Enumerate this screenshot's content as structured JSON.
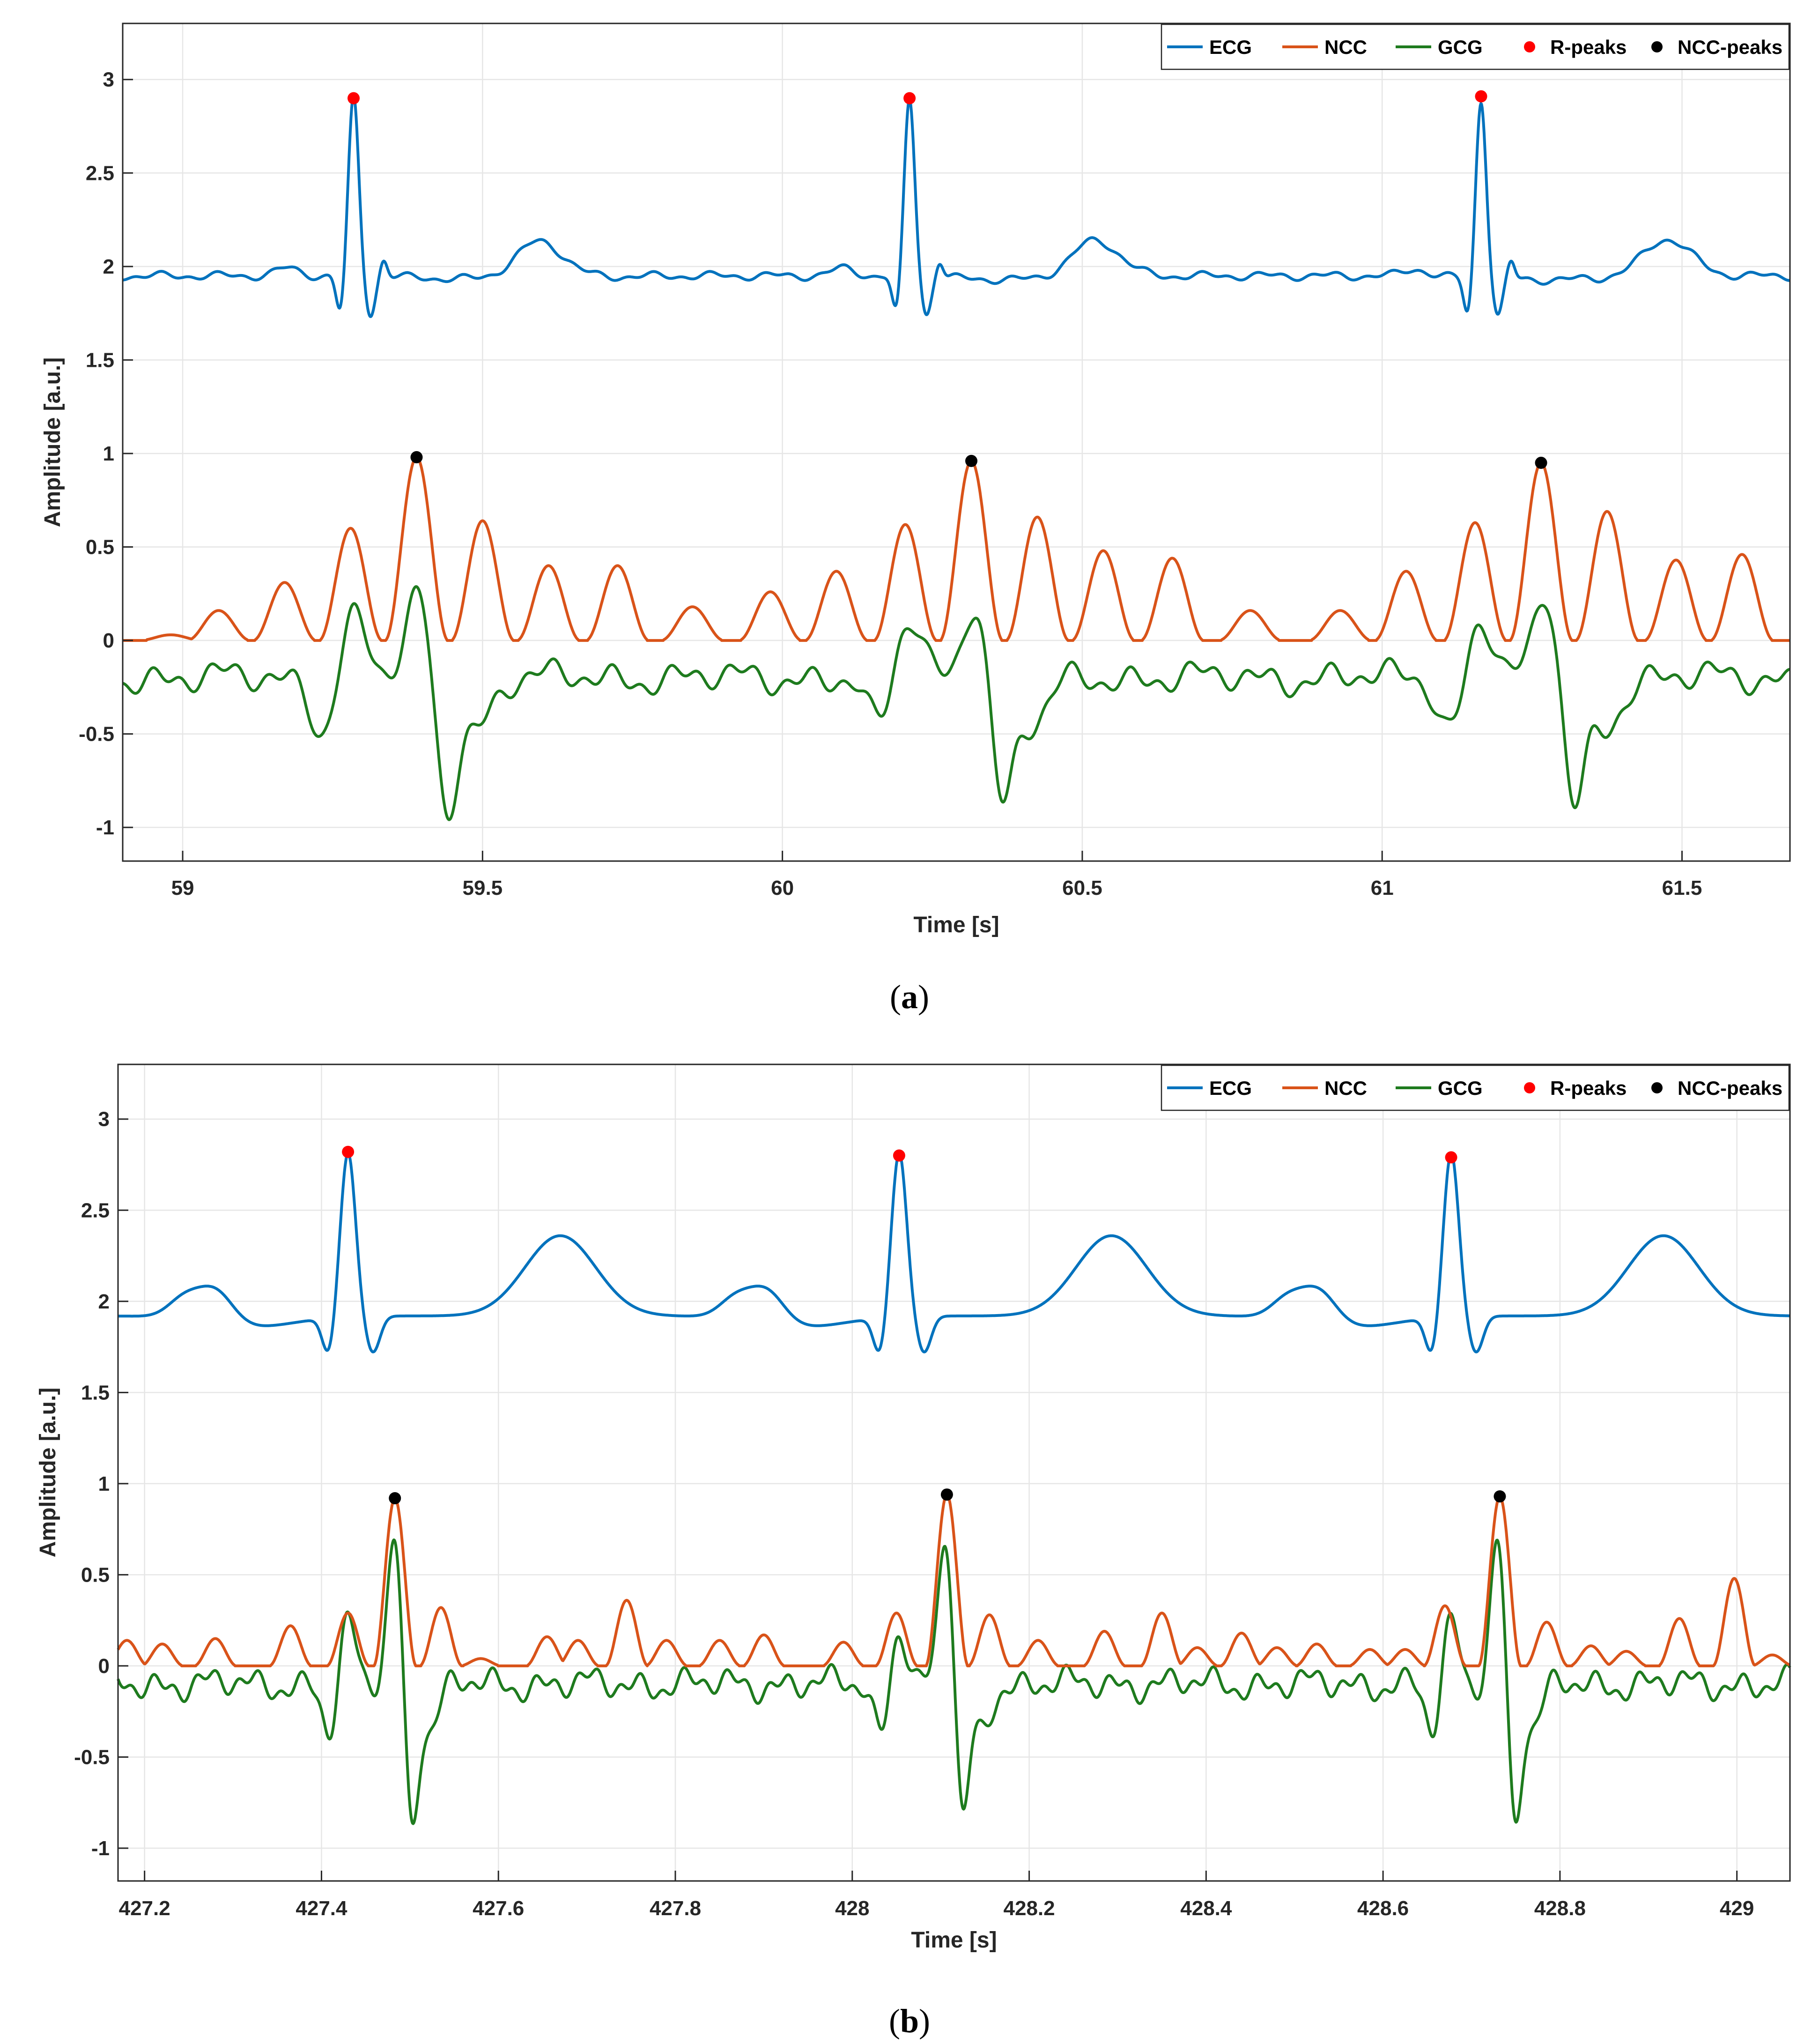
{
  "figure": {
    "captions": [
      {
        "open": "(",
        "letter": "a",
        "close": ")"
      },
      {
        "open": "(",
        "letter": "b",
        "close": ")"
      }
    ]
  },
  "chart_data": [
    {
      "type": "line",
      "panel": "a",
      "title": "",
      "xlabel": "Time [s]",
      "ylabel": "Amplitude [a.u.]",
      "xlim": [
        58.9,
        61.68
      ],
      "ylim": [
        -1.18,
        3.3
      ],
      "xticks": [
        59,
        59.5,
        60,
        60.5,
        61,
        61.5
      ],
      "xticklabels": [
        "59",
        "59.5",
        "60",
        "60.5",
        "61",
        "61.5"
      ],
      "yticks": [
        -1,
        -0.5,
        0,
        0.5,
        1,
        1.5,
        2,
        2.5,
        3
      ],
      "yticklabels": [
        "-1",
        "-0.5",
        "0",
        "0.5",
        "1",
        "1.5",
        "2",
        "2.5",
        "3"
      ],
      "grid": true,
      "legend_position": "top-right",
      "legend": [
        "ECG",
        "NCC",
        "GCG",
        "R-peaks",
        "NCC-peaks"
      ],
      "colors": {
        "ECG": "#0072BD",
        "NCC": "#D95319",
        "GCG": "#1E7B1E",
        "R-peaks": "#FF0000",
        "NCC-peaks": "#000000"
      },
      "beats": [
        59.285,
        60.212,
        61.165
      ],
      "ecg": {
        "baseline": 1.95,
        "r_amplitude": 2.9,
        "p": [
          -0.11,
          0.04
        ],
        "t": [
          0.31,
          0.2
        ],
        "noise": 0.025
      },
      "r_peaks": [
        {
          "x": 59.285,
          "y": 2.9
        },
        {
          "x": 60.212,
          "y": 2.9
        },
        {
          "x": 61.165,
          "y": 2.91
        }
      ],
      "ncc_pulses": [
        {
          "x": 58.98,
          "h": 0.03
        },
        {
          "x": 59.06,
          "h": 0.16
        },
        {
          "x": 59.17,
          "h": 0.31
        },
        {
          "x": 59.28,
          "h": 0.6
        },
        {
          "x": 59.39,
          "h": 0.98
        },
        {
          "x": 59.5,
          "h": 0.64
        },
        {
          "x": 59.61,
          "h": 0.4
        },
        {
          "x": 59.725,
          "h": 0.4
        },
        {
          "x": 59.85,
          "h": 0.18
        },
        {
          "x": 59.98,
          "h": 0.26
        },
        {
          "x": 60.09,
          "h": 0.37
        },
        {
          "x": 60.205,
          "h": 0.62
        },
        {
          "x": 60.315,
          "h": 0.96
        },
        {
          "x": 60.425,
          "h": 0.66
        },
        {
          "x": 60.535,
          "h": 0.48
        },
        {
          "x": 60.65,
          "h": 0.44
        },
        {
          "x": 60.78,
          "h": 0.16
        },
        {
          "x": 60.93,
          "h": 0.16
        },
        {
          "x": 61.04,
          "h": 0.37
        },
        {
          "x": 61.155,
          "h": 0.63
        },
        {
          "x": 61.265,
          "h": 0.95
        },
        {
          "x": 61.375,
          "h": 0.69
        },
        {
          "x": 61.49,
          "h": 0.43
        },
        {
          "x": 61.6,
          "h": 0.46
        }
      ],
      "ncc_peaks": [
        {
          "x": 59.39,
          "y": 0.98
        },
        {
          "x": 60.315,
          "y": 0.96
        },
        {
          "x": 61.265,
          "y": 0.95
        }
      ],
      "gcg": {
        "baseline": -0.2,
        "offset_s": 0.11,
        "pos": 0.34,
        "neg": 0.67
      },
      "x_scale_mode": "a"
    },
    {
      "type": "line",
      "panel": "b",
      "title": "",
      "xlabel": "Time [s]",
      "ylabel": "Amplitude [a.u.]",
      "xlim": [
        427.17,
        429.06
      ],
      "ylim": [
        -1.18,
        3.3
      ],
      "xticks": [
        427.2,
        427.4,
        427.6,
        427.8,
        428,
        428.2,
        428.4,
        428.6,
        428.8,
        429
      ],
      "xticklabels": [
        "427.2",
        "427.4",
        "427.6",
        "427.8",
        "428",
        "428.2",
        "428.4",
        "428.6",
        "428.8",
        "429"
      ],
      "yticks": [
        -1,
        -0.5,
        0,
        0.5,
        1,
        1.5,
        2,
        2.5,
        3
      ],
      "yticklabels": [
        "-1",
        "-0.5",
        "0",
        "0.5",
        "1",
        "1.5",
        "2",
        "2.5",
        "3"
      ],
      "grid": true,
      "legend_position": "top-right",
      "legend": [
        "ECG",
        "NCC",
        "GCG",
        "R-peaks",
        "NCC-peaks"
      ],
      "colors": {
        "ECG": "#0072BD",
        "NCC": "#D95319",
        "GCG": "#1E7B1E",
        "R-peaks": "#FF0000",
        "NCC-peaks": "#000000"
      },
      "beats": [
        427.43,
        428.053,
        428.677
      ],
      "ecg": {
        "baseline": 1.92,
        "r_amplitude": 2.82,
        "p": [
          -0.15,
          0.18
        ],
        "t": [
          0.24,
          0.44
        ],
        "noise": 0.0
      },
      "r_peaks": [
        {
          "x": 427.43,
          "y": 2.82
        },
        {
          "x": 428.053,
          "y": 2.8
        },
        {
          "x": 428.677,
          "y": 2.79
        }
      ],
      "ncc_pulses": [
        {
          "x": 427.18,
          "h": 0.14
        },
        {
          "x": 427.22,
          "h": 0.12
        },
        {
          "x": 427.28,
          "h": 0.15
        },
        {
          "x": 427.365,
          "h": 0.22
        },
        {
          "x": 427.43,
          "h": 0.29
        },
        {
          "x": 427.483,
          "h": 0.92
        },
        {
          "x": 427.535,
          "h": 0.32
        },
        {
          "x": 427.58,
          "h": 0.04
        },
        {
          "x": 427.655,
          "h": 0.16
        },
        {
          "x": 427.69,
          "h": 0.14
        },
        {
          "x": 427.745,
          "h": 0.36
        },
        {
          "x": 427.79,
          "h": 0.14
        },
        {
          "x": 427.85,
          "h": 0.14
        },
        {
          "x": 427.9,
          "h": 0.17
        },
        {
          "x": 427.99,
          "h": 0.13
        },
        {
          "x": 428.05,
          "h": 0.29
        },
        {
          "x": 428.107,
          "h": 0.94
        },
        {
          "x": 428.155,
          "h": 0.28
        },
        {
          "x": 428.21,
          "h": 0.14
        },
        {
          "x": 428.285,
          "h": 0.19
        },
        {
          "x": 428.35,
          "h": 0.29
        },
        {
          "x": 428.39,
          "h": 0.1
        },
        {
          "x": 428.44,
          "h": 0.18
        },
        {
          "x": 428.48,
          "h": 0.1
        },
        {
          "x": 428.525,
          "h": 0.12
        },
        {
          "x": 428.585,
          "h": 0.09
        },
        {
          "x": 428.625,
          "h": 0.09
        },
        {
          "x": 428.67,
          "h": 0.33
        },
        {
          "x": 428.732,
          "h": 0.93
        },
        {
          "x": 428.785,
          "h": 0.24
        },
        {
          "x": 428.835,
          "h": 0.11
        },
        {
          "x": 428.875,
          "h": 0.08
        },
        {
          "x": 428.935,
          "h": 0.26
        },
        {
          "x": 428.997,
          "h": 0.48
        },
        {
          "x": 429.04,
          "h": 0.06
        }
      ],
      "ncc_peaks": [
        {
          "x": 427.483,
          "y": 0.92
        },
        {
          "x": 428.107,
          "y": 0.94
        },
        {
          "x": 428.732,
          "y": 0.93
        }
      ],
      "gcg": {
        "baseline": -0.1,
        "offset_s": 0.053,
        "pos": 0.72,
        "neg": 0.74
      },
      "x_scale_mode": "b"
    }
  ]
}
